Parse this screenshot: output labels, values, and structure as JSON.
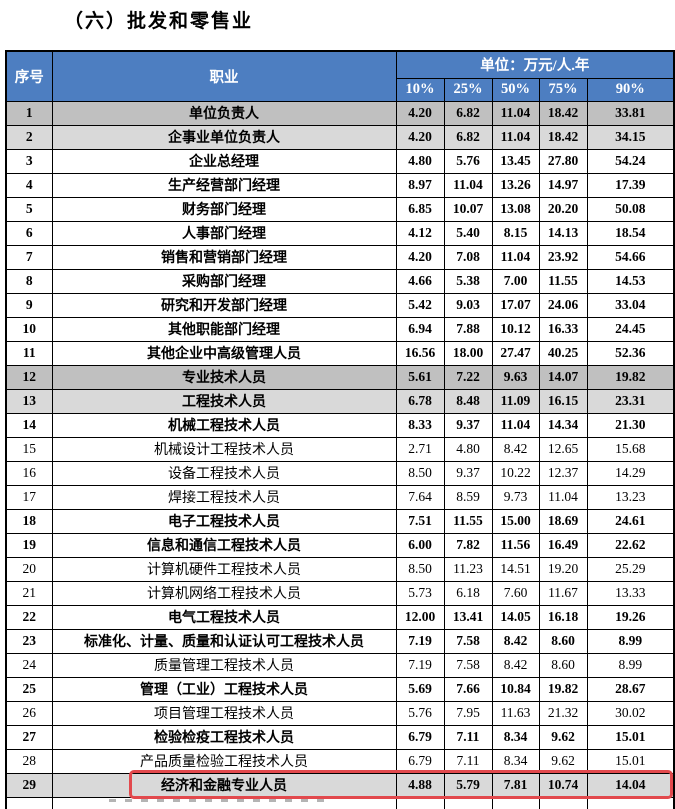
{
  "page": {
    "title": "（六）批发和零售业"
  },
  "table": {
    "header": {
      "col_index": "序号",
      "col_occupation": "职业",
      "unit_label": "单位：万元/人.年",
      "percentiles": [
        "10%",
        "25%",
        "50%",
        "75%",
        "90%"
      ]
    },
    "colors": {
      "header_bg": "#4d7ec1",
      "shade_dark": "#c0c0c0",
      "shade_light": "#d9d9d9",
      "highlight": "#e2494d"
    },
    "rows": [
      {
        "index": "1",
        "occupation": "单位负责人",
        "values": [
          "4.20",
          "6.82",
          "11.04",
          "18.42",
          "33.81"
        ],
        "bold": true,
        "shade": "dark",
        "highlighted": false
      },
      {
        "index": "2",
        "occupation": "企事业单位负责人",
        "values": [
          "4.20",
          "6.82",
          "11.04",
          "18.42",
          "34.15"
        ],
        "bold": true,
        "shade": "light",
        "highlighted": false
      },
      {
        "index": "3",
        "occupation": "企业总经理",
        "values": [
          "4.80",
          "5.76",
          "13.45",
          "27.80",
          "54.24"
        ],
        "bold": true,
        "shade": "none",
        "highlighted": false
      },
      {
        "index": "4",
        "occupation": "生产经营部门经理",
        "values": [
          "8.97",
          "11.04",
          "13.26",
          "14.97",
          "17.39"
        ],
        "bold": true,
        "shade": "none",
        "highlighted": false
      },
      {
        "index": "5",
        "occupation": "财务部门经理",
        "values": [
          "6.85",
          "10.07",
          "13.08",
          "20.20",
          "50.08"
        ],
        "bold": true,
        "shade": "none",
        "highlighted": false
      },
      {
        "index": "6",
        "occupation": "人事部门经理",
        "values": [
          "4.12",
          "5.40",
          "8.15",
          "14.13",
          "18.54"
        ],
        "bold": true,
        "shade": "none",
        "highlighted": false
      },
      {
        "index": "7",
        "occupation": "销售和营销部门经理",
        "values": [
          "4.20",
          "7.08",
          "11.04",
          "23.92",
          "54.66"
        ],
        "bold": true,
        "shade": "none",
        "highlighted": false
      },
      {
        "index": "8",
        "occupation": "采购部门经理",
        "values": [
          "4.66",
          "5.38",
          "7.00",
          "11.55",
          "14.53"
        ],
        "bold": true,
        "shade": "none",
        "highlighted": false
      },
      {
        "index": "9",
        "occupation": "研究和开发部门经理",
        "values": [
          "5.42",
          "9.03",
          "17.07",
          "24.06",
          "33.04"
        ],
        "bold": true,
        "shade": "none",
        "highlighted": false
      },
      {
        "index": "10",
        "occupation": "其他职能部门经理",
        "values": [
          "6.94",
          "7.88",
          "10.12",
          "16.33",
          "24.45"
        ],
        "bold": true,
        "shade": "none",
        "highlighted": false
      },
      {
        "index": "11",
        "occupation": "其他企业中高级管理人员",
        "values": [
          "16.56",
          "18.00",
          "27.47",
          "40.25",
          "52.36"
        ],
        "bold": true,
        "shade": "none",
        "highlighted": false
      },
      {
        "index": "12",
        "occupation": "专业技术人员",
        "values": [
          "5.61",
          "7.22",
          "9.63",
          "14.07",
          "19.82"
        ],
        "bold": true,
        "shade": "dark",
        "highlighted": false
      },
      {
        "index": "13",
        "occupation": "工程技术人员",
        "values": [
          "6.78",
          "8.48",
          "11.09",
          "16.15",
          "23.31"
        ],
        "bold": true,
        "shade": "light",
        "highlighted": false
      },
      {
        "index": "14",
        "occupation": "机械工程技术人员",
        "values": [
          "8.33",
          "9.37",
          "11.04",
          "14.34",
          "21.30"
        ],
        "bold": true,
        "shade": "none",
        "highlighted": false
      },
      {
        "index": "15",
        "occupation": "机械设计工程技术人员",
        "values": [
          "2.71",
          "4.80",
          "8.42",
          "12.65",
          "15.68"
        ],
        "bold": false,
        "shade": "none",
        "highlighted": false
      },
      {
        "index": "16",
        "occupation": "设备工程技术人员",
        "values": [
          "8.50",
          "9.37",
          "10.22",
          "12.37",
          "14.29"
        ],
        "bold": false,
        "shade": "none",
        "highlighted": false
      },
      {
        "index": "17",
        "occupation": "焊接工程技术人员",
        "values": [
          "7.64",
          "8.59",
          "9.73",
          "11.04",
          "13.23"
        ],
        "bold": false,
        "shade": "none",
        "highlighted": false
      },
      {
        "index": "18",
        "occupation": "电子工程技术人员",
        "values": [
          "7.51",
          "11.55",
          "15.00",
          "18.69",
          "24.61"
        ],
        "bold": true,
        "shade": "none",
        "highlighted": false
      },
      {
        "index": "19",
        "occupation": "信息和通信工程技术人员",
        "values": [
          "6.00",
          "7.82",
          "11.56",
          "16.49",
          "22.62"
        ],
        "bold": true,
        "shade": "none",
        "highlighted": false
      },
      {
        "index": "20",
        "occupation": "计算机硬件工程技术人员",
        "values": [
          "8.50",
          "11.23",
          "14.51",
          "19.20",
          "25.29"
        ],
        "bold": false,
        "shade": "none",
        "highlighted": false
      },
      {
        "index": "21",
        "occupation": "计算机网络工程技术人员",
        "values": [
          "5.73",
          "6.18",
          "7.60",
          "11.67",
          "13.33"
        ],
        "bold": false,
        "shade": "none",
        "highlighted": false
      },
      {
        "index": "22",
        "occupation": "电气工程技术人员",
        "values": [
          "12.00",
          "13.41",
          "14.05",
          "16.18",
          "19.26"
        ],
        "bold": true,
        "shade": "none",
        "highlighted": false
      },
      {
        "index": "23",
        "occupation": "标准化、计量、质量和认证认可工程技术人员",
        "values": [
          "7.19",
          "7.58",
          "8.42",
          "8.60",
          "8.99"
        ],
        "bold": true,
        "shade": "none",
        "highlighted": false
      },
      {
        "index": "24",
        "occupation": "质量管理工程技术人员",
        "values": [
          "7.19",
          "7.58",
          "8.42",
          "8.60",
          "8.99"
        ],
        "bold": false,
        "shade": "none",
        "highlighted": false
      },
      {
        "index": "25",
        "occupation": "管理（工业）工程技术人员",
        "values": [
          "5.69",
          "7.66",
          "10.84",
          "19.82",
          "28.67"
        ],
        "bold": true,
        "shade": "none",
        "highlighted": false
      },
      {
        "index": "26",
        "occupation": "项目管理工程技术人员",
        "values": [
          "5.76",
          "7.95",
          "11.63",
          "21.32",
          "30.02"
        ],
        "bold": false,
        "shade": "none",
        "highlighted": false
      },
      {
        "index": "27",
        "occupation": "检验检疫工程技术人员",
        "values": [
          "6.79",
          "7.11",
          "8.34",
          "9.62",
          "15.01"
        ],
        "bold": true,
        "shade": "none",
        "highlighted": false
      },
      {
        "index": "28",
        "occupation": "产品质量检验工程技术人员",
        "values": [
          "6.79",
          "7.11",
          "8.34",
          "9.62",
          "15.01"
        ],
        "bold": false,
        "shade": "none",
        "highlighted": false
      },
      {
        "index": "29",
        "occupation": "经济和金融专业人员",
        "values": [
          "4.88",
          "5.79",
          "7.81",
          "10.74",
          "14.04"
        ],
        "bold": true,
        "shade": "light",
        "highlighted": true
      }
    ]
  }
}
